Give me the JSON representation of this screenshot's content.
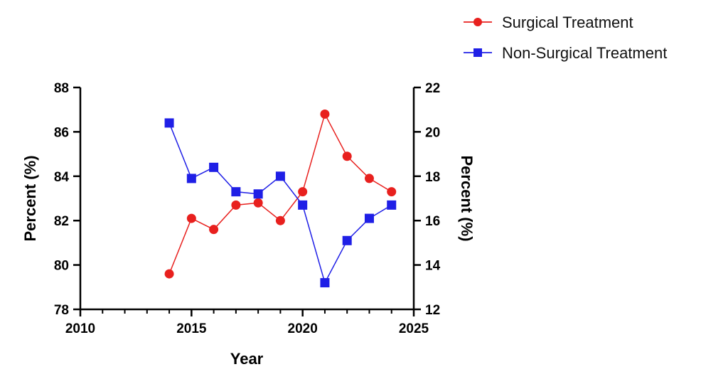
{
  "chart_data": {
    "type": "line",
    "title": "",
    "xlabel": "Year",
    "ylabel_left": "Percent (%)",
    "ylabel_right": "Percent (%)",
    "xlim": [
      2010,
      2025
    ],
    "ylim_left": [
      78,
      88
    ],
    "ylim_right": [
      12,
      22
    ],
    "x_ticks": [
      "2010",
      "2015",
      "2020",
      "2025"
    ],
    "y_left_ticks": [
      "78",
      "80",
      "82",
      "84",
      "86",
      "88"
    ],
    "y_right_ticks": [
      "12",
      "14",
      "16",
      "18",
      "20",
      "22"
    ],
    "grid": false,
    "legend_position": "top-right",
    "series": [
      {
        "name": "Surgical Treatment",
        "axis": "left",
        "color": "#e8201e",
        "marker": "circle",
        "x": [
          2014,
          2015,
          2016,
          2017,
          2018,
          2019,
          2020,
          2021,
          2022,
          2023,
          2024
        ],
        "values": [
          79.6,
          82.1,
          81.6,
          82.7,
          82.8,
          82.0,
          83.3,
          86.8,
          84.9,
          83.9,
          83.3
        ]
      },
      {
        "name": "Non-Surgical Treatment",
        "axis": "right",
        "color": "#1f1fe6",
        "marker": "square",
        "x": [
          2014,
          2015,
          2016,
          2017,
          2018,
          2019,
          2020,
          2021,
          2022,
          2023,
          2024
        ],
        "values": [
          20.4,
          17.9,
          18.4,
          17.3,
          17.2,
          18.0,
          16.7,
          13.2,
          15.1,
          16.1,
          16.7
        ]
      }
    ]
  }
}
